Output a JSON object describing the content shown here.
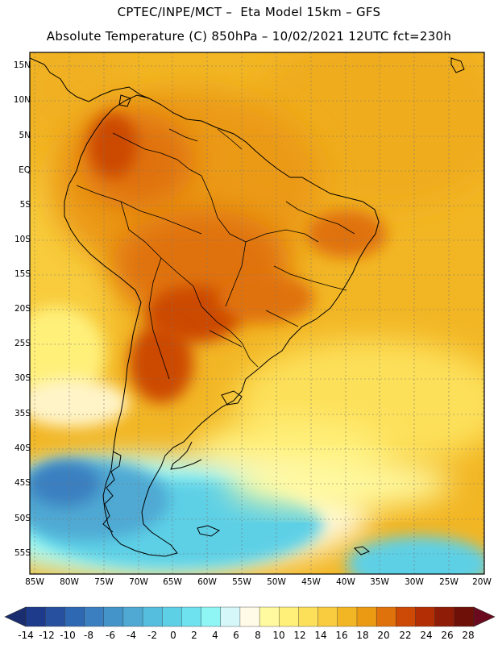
{
  "header": {
    "line1": "CPTEC/INPE/MCT –  Eta Model 15km – GFS",
    "line2": "Absolute Temperature (C) 850hPa – 10/02/2021 12UTC fct=230h"
  },
  "map": {
    "lat_labels": [
      "15N",
      "10N",
      "5N",
      "EQ",
      "5S",
      "10S",
      "15S",
      "20S",
      "25S",
      "30S",
      "35S",
      "40S",
      "45S",
      "50S",
      "55S"
    ],
    "lon_labels": [
      "85W",
      "80W",
      "75W",
      "70W",
      "65W",
      "60W",
      "55W",
      "50W",
      "45W",
      "40W",
      "35W",
      "30W",
      "25W",
      "20W"
    ]
  },
  "colorbar": {
    "labels": [
      "-14",
      "-12",
      "-10",
      "-8",
      "-6",
      "-4",
      "-2",
      "0",
      "2",
      "4",
      "6",
      "8",
      "10",
      "12",
      "14",
      "16",
      "18",
      "20",
      "22",
      "24",
      "26",
      "28"
    ],
    "colors": [
      "#1e3a8a",
      "#27519e",
      "#2f68b2",
      "#3b7fc0",
      "#4594c9",
      "#4fa9d3",
      "#55bddd",
      "#5dd0e6",
      "#6ee2ef",
      "#8ff5f5",
      "#d6f7fa",
      "#fffbe6",
      "#fffaa0",
      "#fff07a",
      "#fde05a",
      "#f8cc3e",
      "#f2b624",
      "#eb9a14",
      "#e0720c",
      "#cc4a06",
      "#b32e04",
      "#8e1c06",
      "#6e1008"
    ],
    "end_left": "#1a2d6e",
    "end_right": "#6b0a1e"
  }
}
